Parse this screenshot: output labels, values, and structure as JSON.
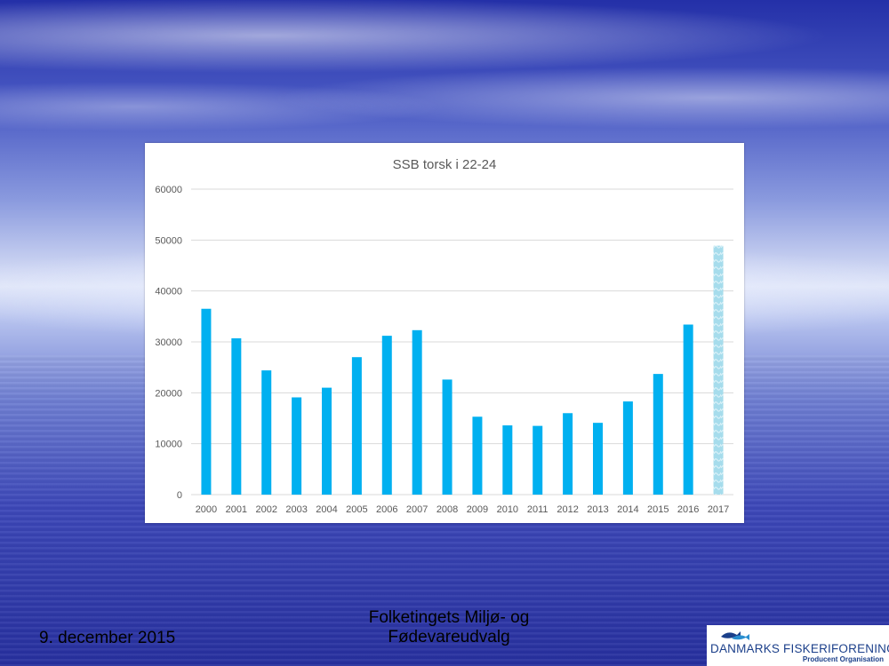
{
  "chart_data": {
    "type": "bar",
    "title": "SSB torsk i 22-24",
    "xlabel": "",
    "ylabel": "",
    "categories": [
      "2000",
      "2001",
      "2002",
      "2003",
      "2004",
      "2005",
      "2006",
      "2007",
      "2008",
      "2009",
      "2010",
      "2011",
      "2012",
      "2013",
      "2014",
      "2015",
      "2016",
      "2017"
    ],
    "values": [
      36500,
      30700,
      24400,
      19100,
      21000,
      27000,
      31200,
      32300,
      22600,
      15300,
      13600,
      13500,
      16000,
      14100,
      18300,
      23700,
      33400,
      48900
    ],
    "projected_categories": [
      "2017"
    ],
    "ylim": [
      0,
      60000
    ],
    "yticks": [
      0,
      10000,
      20000,
      30000,
      40000,
      50000,
      60000
    ],
    "grid": true,
    "legend": "none",
    "colors": {
      "bar": "#00b0f0",
      "projected": "#a6dcec",
      "grid": "#d9d9d9",
      "text": "#595959"
    }
  },
  "footer": {
    "date": "9. december 2015",
    "committee_line1": "Folketingets Miljø- og",
    "committee_line2": "Fødevareudvalg"
  },
  "logo": {
    "name": "DANMARKS FISKERIFORENING",
    "subtitle": "Producent Organisation"
  }
}
